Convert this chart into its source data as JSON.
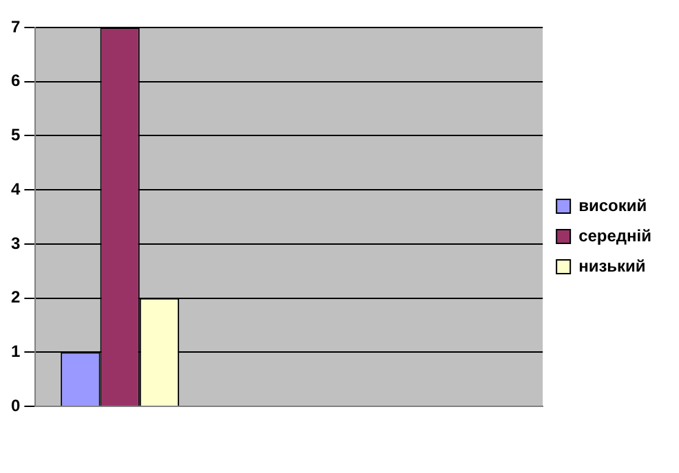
{
  "chart_data": {
    "type": "bar",
    "categories": [
      null,
      null,
      null
    ],
    "series": [
      {
        "name": "високий",
        "color": "#9999ff",
        "values": [
          1,
          null,
          null
        ]
      },
      {
        "name": "середній",
        "color": "#993366",
        "values": [
          7,
          null,
          null
        ]
      },
      {
        "name": "низький",
        "color": "#ffffcc",
        "values": [
          2,
          null,
          null
        ]
      }
    ],
    "ylim": [
      0,
      7
    ],
    "yticks": [
      0,
      1,
      2,
      3,
      4,
      5,
      6,
      7
    ],
    "grid": "y",
    "legend": "right"
  }
}
